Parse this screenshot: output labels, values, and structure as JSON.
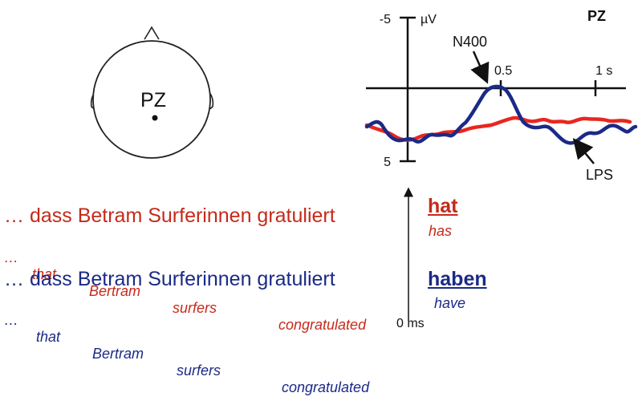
{
  "head_map": {
    "electrode_label": "PZ"
  },
  "erp_plot": {
    "channel_label": "PZ",
    "y_axis": {
      "unit": "µV",
      "top_tick": "-5",
      "bottom_tick": "5"
    },
    "x_axis": {
      "tick_05": "0.5",
      "tick_1s": "1 s"
    },
    "annotations": {
      "n400": "N400",
      "lps": "LPS"
    },
    "colors": {
      "red_condition": "#e8271f",
      "blue_condition": "#1b2a86"
    },
    "onset_label": "0 ms"
  },
  "sentences": {
    "red": {
      "german": "… dass Betram Surferinnen gratuliert",
      "english_words": [
        "…",
        "that",
        "Bertram",
        "surfers",
        "congratulated"
      ],
      "verb": "hat",
      "verb_gloss": "has",
      "color": "#c52a1a"
    },
    "blue": {
      "german": "… dass Betram Surferinnen gratuliert",
      "english_words": [
        "…",
        "that",
        "Bertram",
        "surfers",
        "congratulated"
      ],
      "verb": "haben",
      "verb_gloss": "have",
      "color": "#1b2a86"
    }
  }
}
